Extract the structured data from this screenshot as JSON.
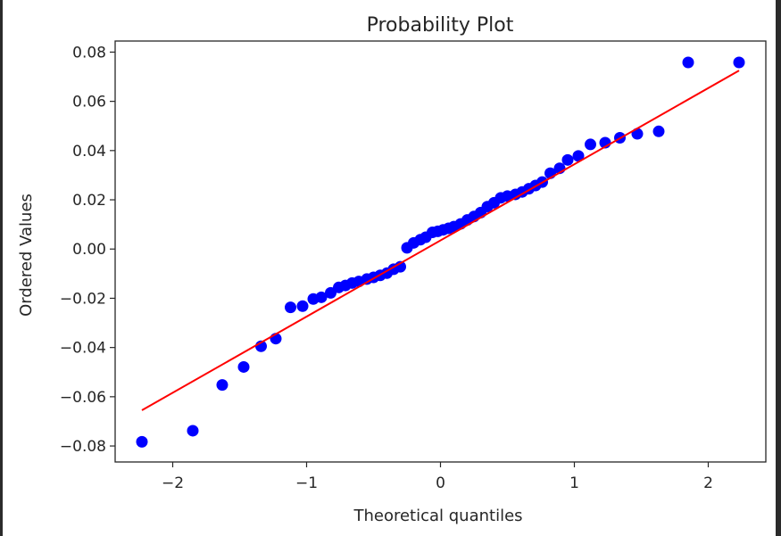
{
  "chart_data": {
    "type": "scatter",
    "title": "Probability Plot",
    "xlabel": "Theoretical quantiles",
    "ylabel": "Ordered Values",
    "xlim": [
      -2.43,
      2.43
    ],
    "ylim": [
      -0.0865,
      0.0845
    ],
    "x_ticks": [
      -2,
      -1,
      0,
      1,
      2
    ],
    "x_tick_labels": [
      "−2",
      "−1",
      "0",
      "1",
      "2"
    ],
    "y_ticks": [
      -0.08,
      -0.06,
      -0.04,
      -0.02,
      0.0,
      0.02,
      0.04,
      0.06,
      0.08
    ],
    "y_tick_labels": [
      "−0.08",
      "−0.06",
      "−0.04",
      "−0.02",
      "0.00",
      "0.02",
      "0.04",
      "0.06",
      "0.08"
    ],
    "grid": false,
    "colors": {
      "points": "#0000ff",
      "fit_line": "#ff0000",
      "axes": "#262626"
    },
    "series": [
      {
        "values_x": [
          -2.23,
          -1.85,
          -1.63,
          -1.47,
          -1.34,
          -1.23,
          -1.12,
          -1.03,
          -0.95,
          -0.89,
          -0.82,
          -0.76,
          -0.71,
          -0.66,
          -0.61,
          -0.55,
          -0.5,
          -0.45,
          -0.4,
          -0.35,
          -0.3,
          -0.25,
          -0.2,
          -0.15,
          -0.11,
          -0.06,
          -0.02,
          0.02,
          0.06,
          0.1,
          0.15,
          0.2,
          0.25,
          0.3,
          0.35,
          0.4,
          0.45,
          0.5,
          0.56,
          0.61,
          0.66,
          0.71,
          0.76,
          0.82,
          0.89,
          0.95,
          1.03,
          1.12,
          1.23,
          1.34,
          1.47,
          1.63,
          1.85,
          2.23
        ],
        "values_y": [
          -0.0783,
          -0.0738,
          -0.0552,
          -0.0479,
          -0.0395,
          -0.0364,
          -0.0237,
          -0.0232,
          -0.0203,
          -0.0196,
          -0.0178,
          -0.0156,
          -0.0148,
          -0.0138,
          -0.0132,
          -0.0122,
          -0.0115,
          -0.0107,
          -0.0098,
          -0.0082,
          -0.0072,
          0.0005,
          0.0025,
          0.0038,
          0.0048,
          0.0068,
          0.0072,
          0.0078,
          0.0084,
          0.0091,
          0.0102,
          0.0118,
          0.0132,
          0.0148,
          0.0172,
          0.0188,
          0.0208,
          0.0215,
          0.0222,
          0.0232,
          0.0245,
          0.0258,
          0.0272,
          0.0308,
          0.0328,
          0.0362,
          0.0378,
          0.0425,
          0.0432,
          0.0452,
          0.0468,
          0.0478,
          0.0758,
          0.0758
        ]
      }
    ],
    "fit_line": {
      "x": [
        -2.23,
        2.23
      ],
      "y": [
        -0.0655,
        0.0725
      ]
    }
  }
}
